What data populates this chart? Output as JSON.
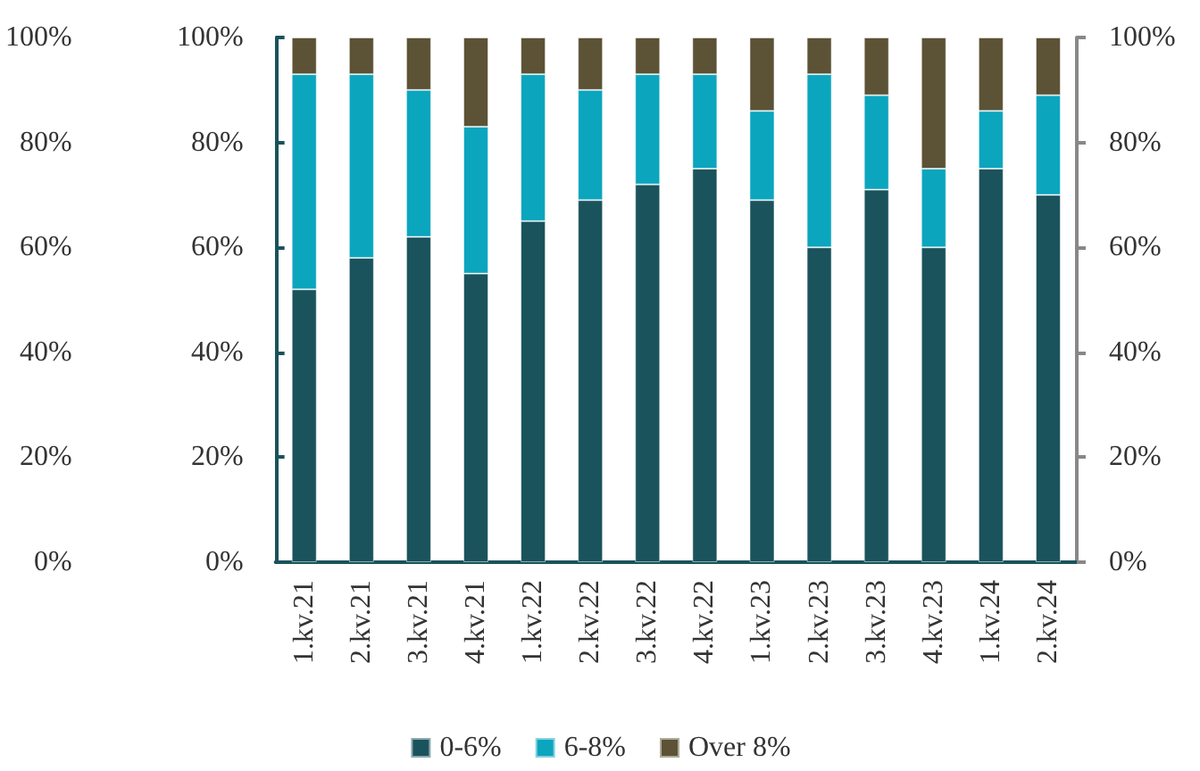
{
  "chart_data": {
    "type": "bar",
    "stacked": true,
    "categories": [
      "1.kv.21",
      "2.kv.21",
      "3.kv.21",
      "4.kv.21",
      "1.kv.22",
      "2.kv.22",
      "3.kv.22",
      "4.kv.22",
      "1.kv.23",
      "2.kv.23",
      "3.kv.23",
      "4.kv.23",
      "1.kv.24",
      "2.kv.24"
    ],
    "series": [
      {
        "name": "0-6%",
        "color": "#1a535c",
        "values": [
          52,
          58,
          62,
          55,
          65,
          69,
          72,
          75,
          69,
          60,
          71,
          60,
          75,
          70
        ]
      },
      {
        "name": "6-8%",
        "color": "#0ba5be",
        "values": [
          41,
          35,
          28,
          28,
          28,
          21,
          21,
          18,
          17,
          33,
          18,
          15,
          11,
          19
        ]
      },
      {
        "name": "Over 8%",
        "color": "#5c5235",
        "values": [
          7,
          7,
          10,
          17,
          7,
          10,
          7,
          7,
          14,
          7,
          11,
          25,
          14,
          11
        ]
      }
    ],
    "ylim": [
      0,
      100
    ],
    "yticks": [
      {
        "value": 0,
        "label": "0%"
      },
      {
        "value": 20,
        "label": "20%"
      },
      {
        "value": 40,
        "label": "40%"
      },
      {
        "value": 60,
        "label": "60%"
      },
      {
        "value": 80,
        "label": "80%"
      },
      {
        "value": 100,
        "label": "100%"
      }
    ],
    "y2lim": [
      0,
      100
    ],
    "y2ticks": [
      {
        "value": 0,
        "label": "0%"
      },
      {
        "value": 20,
        "label": "20%"
      },
      {
        "value": 40,
        "label": "40%"
      },
      {
        "value": 60,
        "label": "60%"
      },
      {
        "value": 80,
        "label": "80%"
      },
      {
        "value": 100,
        "label": "100%"
      }
    ],
    "y3lim": [
      0,
      100
    ],
    "y3ticks": [
      {
        "value": 0,
        "label": "0%"
      },
      {
        "value": 20,
        "label": "20%"
      },
      {
        "value": 40,
        "label": "40%"
      },
      {
        "value": 60,
        "label": "60%"
      },
      {
        "value": 80,
        "label": "80%"
      },
      {
        "value": 100,
        "label": "100%"
      }
    ],
    "grid": false,
    "legend": "bottom"
  }
}
